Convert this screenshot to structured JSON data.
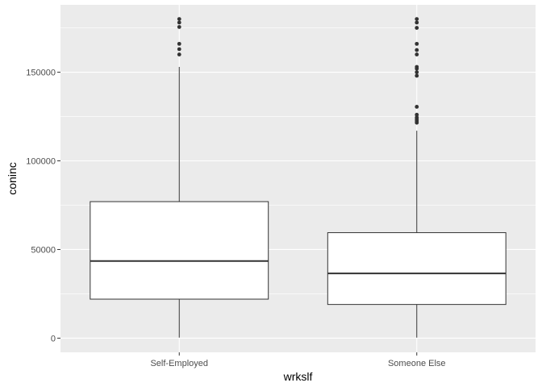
{
  "chart_data": {
    "type": "boxplot",
    "xlabel": "wrkslf",
    "ylabel": "coninc",
    "categories": [
      "Self-Employed",
      "Someone Else"
    ],
    "ylim": [
      -8000,
      188000
    ],
    "yticks": [
      0,
      50000,
      100000,
      150000
    ],
    "ytick_labels": [
      "0",
      "50000",
      "100000",
      "150000"
    ],
    "grid": true,
    "boxes": [
      {
        "category": "Self-Employed",
        "whisker_low": 300,
        "q1": 22000,
        "median": 43500,
        "q3": 77000,
        "whisker_high": 153000,
        "outliers": [
          160000,
          163000,
          166000,
          175500,
          178000,
          180000
        ]
      },
      {
        "category": "Someone Else",
        "whisker_low": 300,
        "q1": 19000,
        "median": 36500,
        "q3": 59500,
        "whisker_high": 117000,
        "outliers": [
          121500,
          122500,
          123500,
          124500,
          126000,
          130500,
          148000,
          150000,
          152000,
          153000,
          160000,
          162500,
          166000,
          175000,
          178000,
          180000
        ]
      }
    ]
  },
  "colors": {
    "panel_background": "#ebebeb",
    "grid_major": "#ffffff",
    "box_fill": "#ffffff",
    "box_stroke": "#333333",
    "outlier": "#333333",
    "tick_text": "#4d4d4d"
  }
}
